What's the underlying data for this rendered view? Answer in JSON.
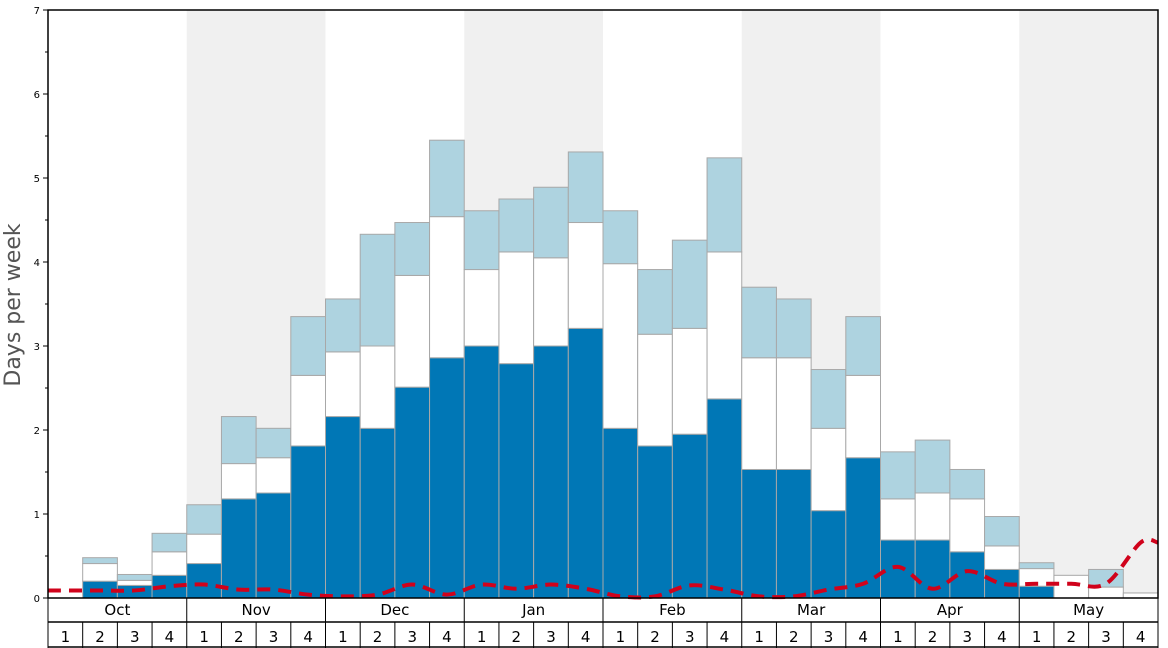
{
  "chart_data": {
    "type": "bar",
    "stacked": true,
    "ylabel": "Days per week",
    "ylim": [
      0,
      7
    ],
    "yticks": [
      0,
      1,
      2,
      3,
      4,
      5,
      6,
      7
    ],
    "months": [
      "Oct",
      "Nov",
      "Dec",
      "Jan",
      "Feb",
      "Mar",
      "Apr",
      "May"
    ],
    "weeks_per_month": [
      "1",
      "2",
      "3",
      "4"
    ],
    "shaded_month_bands": [
      "Nov",
      "Jan",
      "Mar",
      "May"
    ],
    "series": [
      {
        "color": "#0077b6",
        "values": [
          0,
          0.2,
          0.15,
          0.27,
          0.41,
          1.18,
          1.25,
          1.81,
          2.16,
          2.02,
          2.51,
          2.86,
          3.0,
          2.79,
          3.0,
          3.21,
          2.02,
          1.81,
          1.95,
          2.37,
          1.53,
          1.53,
          1.04,
          1.67,
          0.69,
          0.69,
          0.55,
          0.34,
          0.14,
          0,
          0,
          0
        ]
      },
      {
        "color": "#ffffff",
        "values": [
          0,
          0.21,
          0.06,
          0.28,
          0.35,
          0.42,
          0.42,
          0.84,
          0.77,
          0.98,
          1.33,
          1.68,
          0.91,
          1.33,
          1.05,
          1.26,
          1.96,
          1.33,
          1.26,
          1.75,
          1.33,
          1.33,
          0.98,
          0.98,
          0.49,
          0.56,
          0.63,
          0.28,
          0.21,
          0.27,
          0.13,
          0.06
        ]
      },
      {
        "color": "#aed3e0",
        "values": [
          0,
          0.07,
          0.07,
          0.22,
          0.35,
          0.56,
          0.35,
          0.7,
          0.63,
          1.33,
          0.63,
          0.91,
          0.7,
          0.63,
          0.84,
          0.84,
          0.63,
          0.77,
          1.05,
          1.12,
          0.84,
          0.7,
          0.7,
          0.7,
          0.56,
          0.63,
          0.35,
          0.35,
          0.07,
          0,
          0.21,
          0
        ]
      }
    ],
    "line": {
      "color": "#d0021b",
      "style": "dashed",
      "values": [
        0.09,
        0.09,
        0.09,
        0.14,
        0.16,
        0.1,
        0.1,
        0.04,
        0.02,
        0.04,
        0.16,
        0.04,
        0.16,
        0.11,
        0.16,
        0.11,
        0.02,
        0.02,
        0.15,
        0.1,
        0.02,
        0.02,
        0.1,
        0.17,
        0.37,
        0.11,
        0.32,
        0.17,
        0.17,
        0.17,
        0.17,
        0.66
      ]
    }
  }
}
